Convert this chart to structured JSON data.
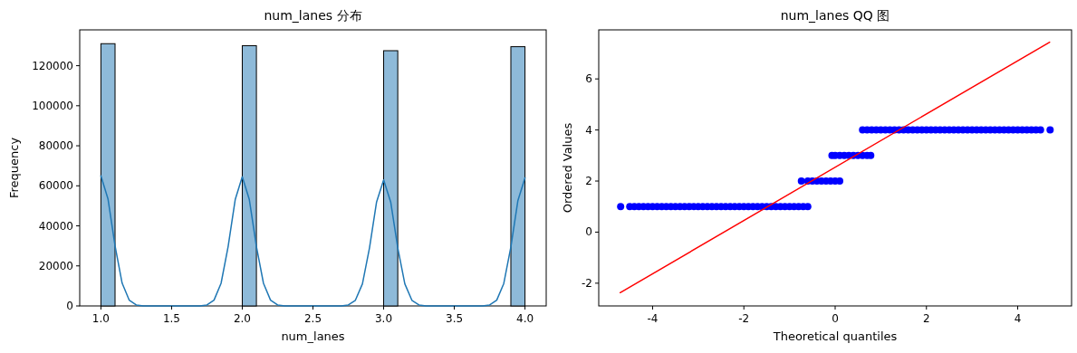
{
  "chart_data": [
    {
      "type": "histogram",
      "title": "num_lanes 分布",
      "xlabel": "num_lanes",
      "ylabel": "Frequency",
      "bins": [
        1.0,
        1.1,
        1.2,
        1.3,
        1.4,
        1.5,
        1.6,
        1.7,
        1.8,
        1.9,
        2.0,
        2.1,
        2.2,
        2.3,
        2.4,
        2.5,
        2.6,
        2.7,
        2.8,
        2.9,
        3.0,
        3.1,
        3.2,
        3.3,
        3.4,
        3.5,
        3.6,
        3.7,
        3.8,
        3.9,
        4.0
      ],
      "xlim": [
        0.85,
        4.15
      ],
      "xticks": [
        {
          "value": 1,
          "label": "1.0"
        },
        1.5,
        {
          "value": 2,
          "label": "2.0"
        },
        2.5,
        {
          "value": 3,
          "label": "3.0"
        },
        3.5,
        {
          "value": 4,
          "label": "4.0"
        }
      ],
      "ylim": [
        0,
        137900
      ],
      "yticks": [
        0,
        20000,
        40000,
        60000,
        80000,
        100000,
        120000
      ],
      "series": [
        {
          "color": "#8ebad9",
          "values": [
            131000,
            0,
            0,
            0,
            0,
            0,
            0,
            0,
            0,
            0,
            130000,
            0,
            0,
            0,
            0,
            0,
            0,
            0,
            0,
            0,
            127500,
            0,
            0,
            0,
            0,
            0,
            0,
            0,
            0,
            129500
          ]
        },
        {
          "type": "line",
          "color": "#1f77b4",
          "x": [
            1.0,
            1.05,
            1.1,
            1.15,
            1.2,
            1.25,
            1.3,
            1.5,
            1.7,
            1.75,
            1.8,
            1.85,
            1.9,
            1.95,
            2.0,
            2.05,
            2.1,
            2.15,
            2.2,
            2.25,
            2.3,
            2.5,
            2.7,
            2.75,
            2.8,
            2.85,
            2.9,
            2.95,
            3.0,
            3.05,
            3.1,
            3.15,
            3.2,
            3.25,
            3.3,
            3.5,
            3.7,
            3.75,
            3.8,
            3.85,
            3.9,
            3.95,
            4.0
          ],
          "values": [
            65000,
            53500,
            30000,
            11400,
            2900,
            500,
            0,
            0,
            0,
            500,
            2900,
            11300,
            29700,
            53100,
            64500,
            53100,
            29700,
            11300,
            2900,
            500,
            0,
            0,
            0,
            500,
            2800,
            11000,
            29000,
            51900,
            63000,
            51900,
            29000,
            11000,
            2800,
            500,
            0,
            0,
            0,
            500,
            2900,
            11200,
            29400,
            52700,
            64000
          ]
        }
      ]
    },
    {
      "type": "scatter",
      "title": "num_lanes QQ 图",
      "xlabel": "Theoretical quantiles",
      "ylabel": "Ordered Values",
      "xlim": [
        -5.18,
        5.18
      ],
      "xticks": [
        -4,
        -2,
        0,
        2,
        4
      ],
      "ylim": [
        -2.89,
        7.92
      ],
      "yticks": [
        -2,
        0,
        2,
        4,
        6
      ],
      "series": [
        {
          "marker": "circle",
          "color": "#0000ff",
          "x": [
            -4.7,
            -4.5,
            -4.4,
            -4.3,
            -4.2,
            -4.1,
            -4.0,
            -3.9,
            -3.8,
            -3.7,
            -3.6,
            -3.5,
            -3.4,
            -3.3,
            -3.2,
            -3.1,
            -3.0,
            -2.9,
            -2.8,
            -2.7,
            -2.6,
            -2.5,
            -2.4,
            -2.3,
            -2.2,
            -2.1,
            -2.0,
            -1.9,
            -1.8,
            -1.7,
            -1.6,
            -1.5,
            -1.4,
            -1.3,
            -1.2,
            -1.1,
            -1.0,
            -0.9,
            -0.8,
            -0.7,
            -0.6,
            -0.74,
            -0.6,
            -0.5,
            -0.4,
            -0.3,
            -0.2,
            -0.1,
            0.0,
            0.1,
            -0.07,
            0.0,
            0.1,
            0.2,
            0.3,
            0.4,
            0.5,
            0.6,
            0.7,
            0.78,
            0.6,
            0.7,
            0.8,
            0.9,
            1.0,
            1.1,
            1.2,
            1.3,
            1.4,
            1.5,
            1.6,
            1.7,
            1.8,
            1.9,
            2.0,
            2.1,
            2.2,
            2.3,
            2.4,
            2.5,
            2.6,
            2.7,
            2.8,
            2.9,
            3.0,
            3.1,
            3.2,
            3.3,
            3.4,
            3.5,
            3.6,
            3.7,
            3.8,
            3.9,
            4.0,
            4.1,
            4.2,
            4.3,
            4.4,
            4.5,
            4.71
          ],
          "values": [
            1,
            1,
            1,
            1,
            1,
            1,
            1,
            1,
            1,
            1,
            1,
            1,
            1,
            1,
            1,
            1,
            1,
            1,
            1,
            1,
            1,
            1,
            1,
            1,
            1,
            1,
            1,
            1,
            1,
            1,
            1,
            1,
            1,
            1,
            1,
            1,
            1,
            1,
            1,
            1,
            1,
            2,
            2,
            2,
            2,
            2,
            2,
            2,
            2,
            2,
            3,
            3,
            3,
            3,
            3,
            3,
            3,
            3,
            3,
            3,
            4,
            4,
            4,
            4,
            4,
            4,
            4,
            4,
            4,
            4,
            4,
            4,
            4,
            4,
            4,
            4,
            4,
            4,
            4,
            4,
            4,
            4,
            4,
            4,
            4,
            4,
            4,
            4,
            4,
            4,
            4,
            4,
            4,
            4,
            4,
            4,
            4,
            4,
            4,
            4,
            4
          ]
        },
        {
          "type": "line",
          "color": "#ff0000",
          "x": [
            -4.71,
            4.7
          ],
          "values": [
            -2.37,
            7.44
          ]
        }
      ]
    }
  ]
}
